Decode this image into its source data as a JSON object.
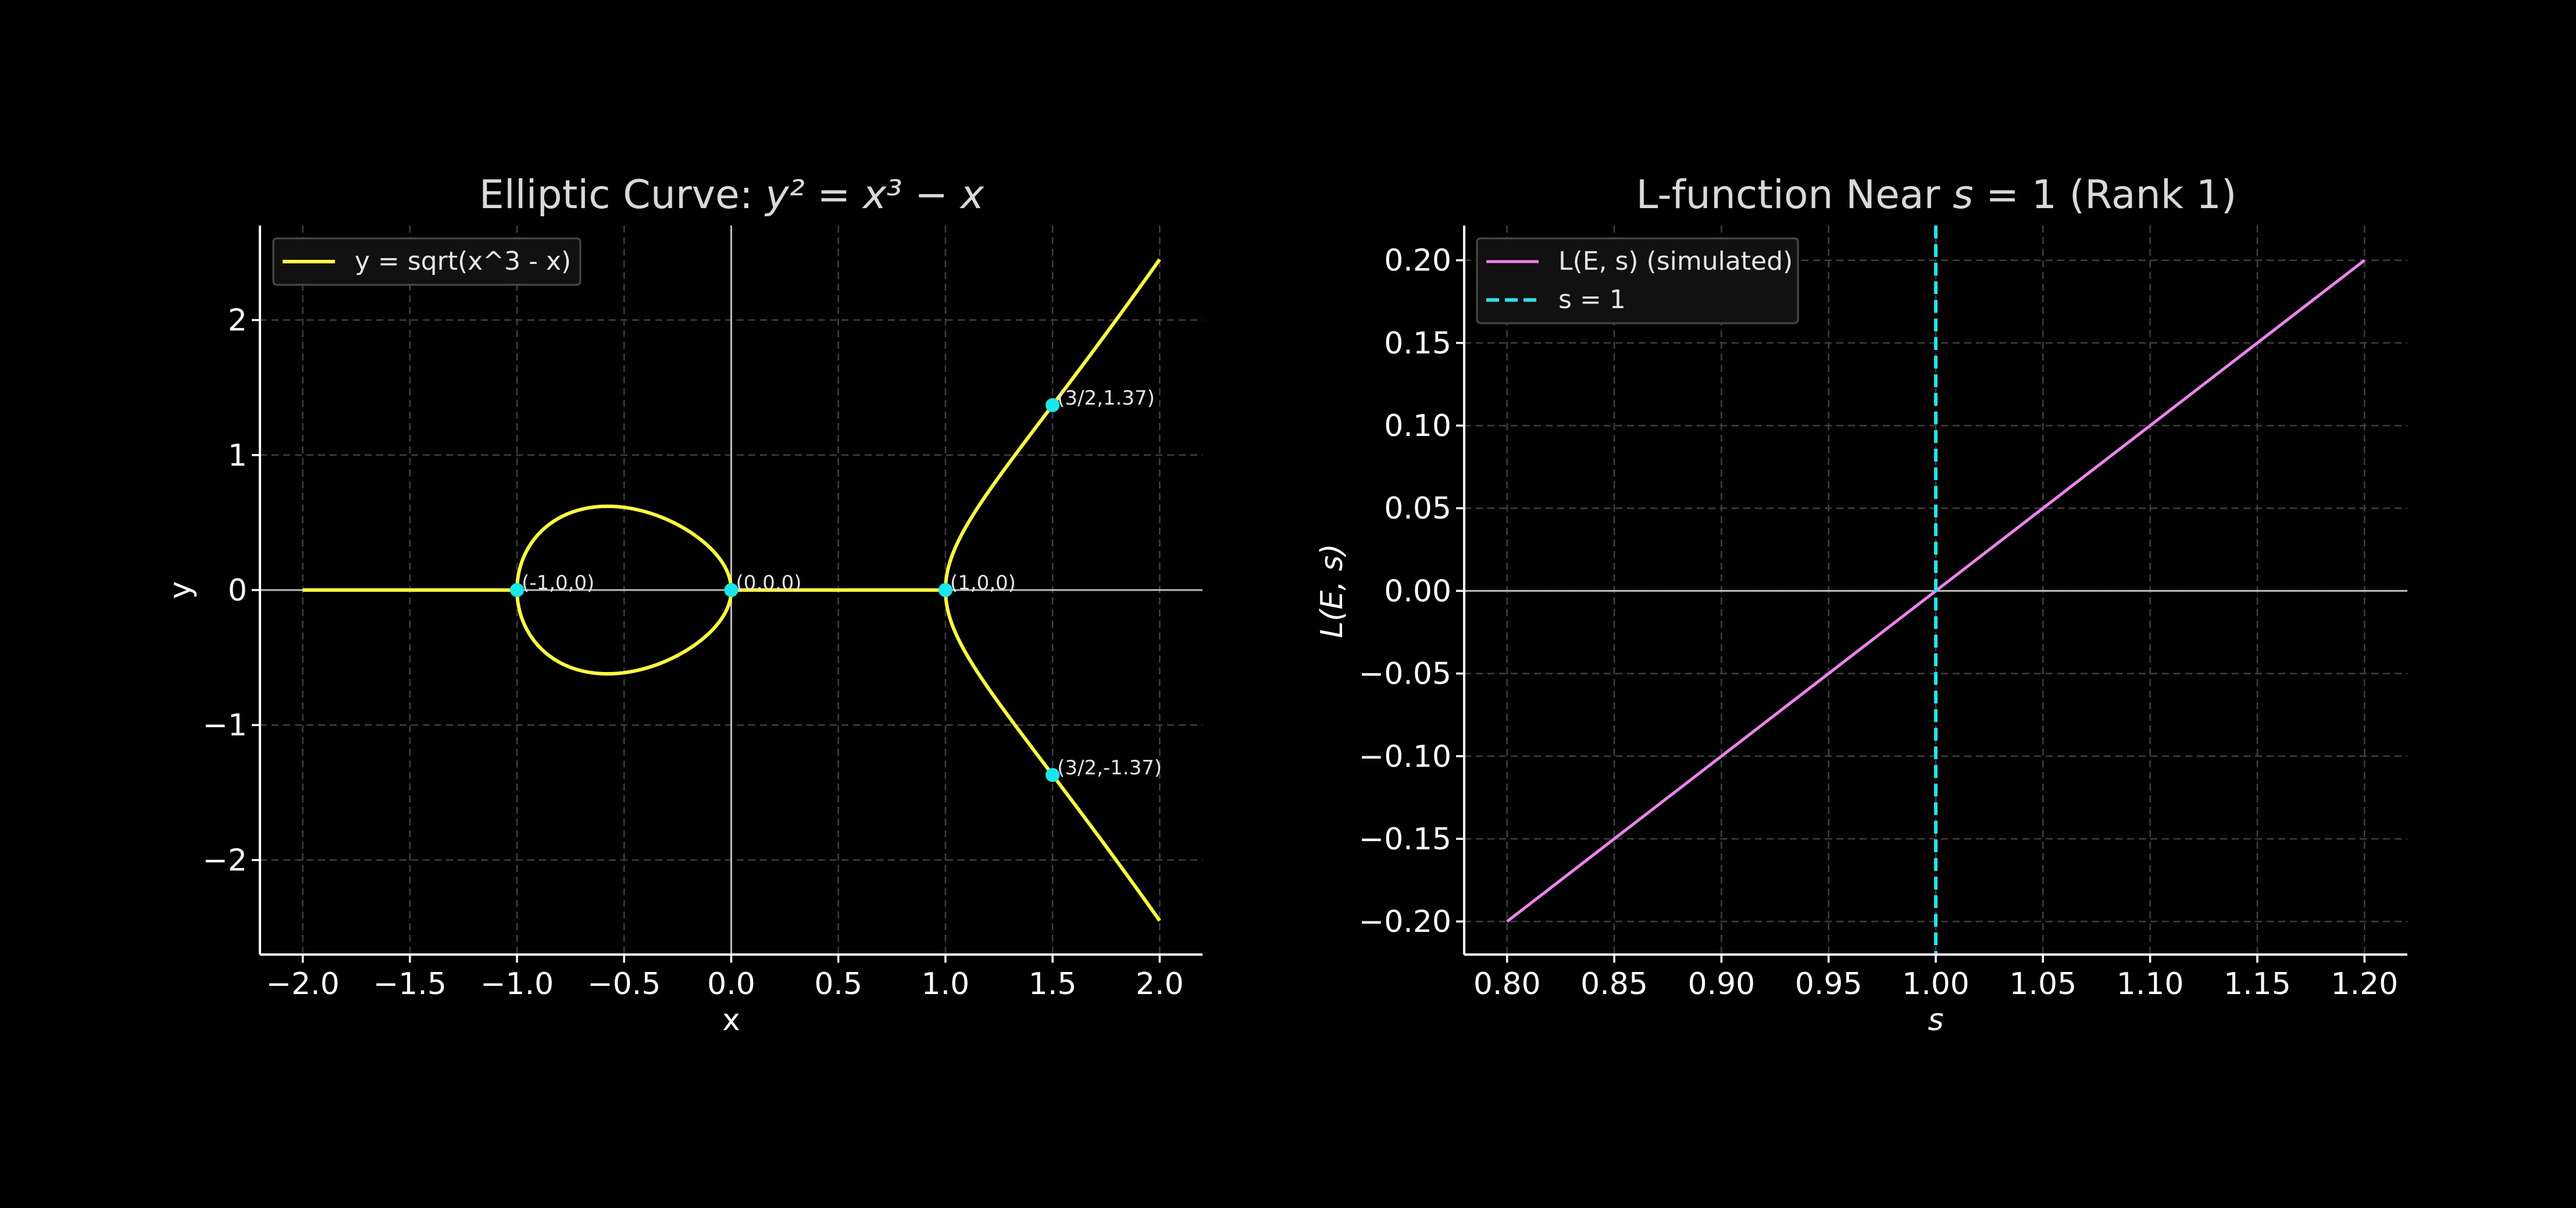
{
  "colors": {
    "background": "#000000",
    "curve": "#ffff33",
    "points": "#17e8ec",
    "lfunc": "#ee82ee",
    "vline": "#17e8ec",
    "text": "#ffffff"
  },
  "chart_data": [
    {
      "type": "line",
      "title_prefix": "Elliptic Curve: ",
      "title_math": "y² = x³ − x",
      "xlabel": "x",
      "ylabel": "y",
      "xlim": [
        -2.2,
        2.2
      ],
      "ylim": [
        -2.7,
        2.7
      ],
      "xticks": [
        -2.0,
        -1.5,
        -1.0,
        -0.5,
        0.0,
        0.5,
        1.0,
        1.5,
        2.0
      ],
      "xtick_labels": [
        "−2.0",
        "−1.5",
        "−1.0",
        "−0.5",
        "0.0",
        "0.5",
        "1.0",
        "1.5",
        "2.0"
      ],
      "yticks": [
        -2,
        -1,
        0,
        1,
        2
      ],
      "ytick_labels": [
        "−2",
        "−1",
        "0",
        "1",
        "2"
      ],
      "grid": true,
      "legend_position": "top-left",
      "series": [
        {
          "name": "y = sqrt(x^3 - x)",
          "function": "±sqrt(x^3 - x), 0 where undefined",
          "x_range": [
            -2.0,
            2.0
          ]
        }
      ],
      "points": [
        {
          "x": -1.0,
          "y": 0.0,
          "label": "(-1,0,0)"
        },
        {
          "x": 0.0,
          "y": 0.0,
          "label": "(0,0,0)"
        },
        {
          "x": 1.0,
          "y": 0.0,
          "label": "(1,0,0)"
        },
        {
          "x": 1.5,
          "y": 1.37,
          "label": "(3/2,1.37)"
        },
        {
          "x": 1.5,
          "y": -1.37,
          "label": "(3/2,-1.37)"
        }
      ]
    },
    {
      "type": "line",
      "title": "L-function Near s = 1 (Rank 1)",
      "xlabel": "s",
      "ylabel": "L(E, s)",
      "xlim": [
        0.78,
        1.22
      ],
      "ylim": [
        -0.22,
        0.2
      ],
      "xticks": [
        0.8,
        0.85,
        0.9,
        0.95,
        1.0,
        1.05,
        1.1,
        1.15,
        1.2
      ],
      "xtick_labels": [
        "0.80",
        "0.85",
        "0.90",
        "0.95",
        "1.00",
        "1.05",
        "1.10",
        "1.15",
        "1.20"
      ],
      "yticks": [
        -0.2,
        -0.15,
        -0.1,
        -0.05,
        0.0,
        0.05,
        0.1,
        0.15,
        0.2
      ],
      "ytick_labels": [
        "−0.20",
        "−0.15",
        "−0.10",
        "−0.05",
        "0.00",
        "0.05",
        "0.10",
        "0.15",
        "0.20"
      ],
      "grid": true,
      "legend_position": "top-left",
      "series": [
        {
          "name": "L(E, s) (simulated)",
          "x": [
            0.8,
            1.2
          ],
          "y": [
            -0.2,
            0.2
          ]
        },
        {
          "name": "s = 1",
          "x": [
            1.0,
            1.0
          ],
          "style": "dashed vertical line"
        }
      ]
    }
  ]
}
